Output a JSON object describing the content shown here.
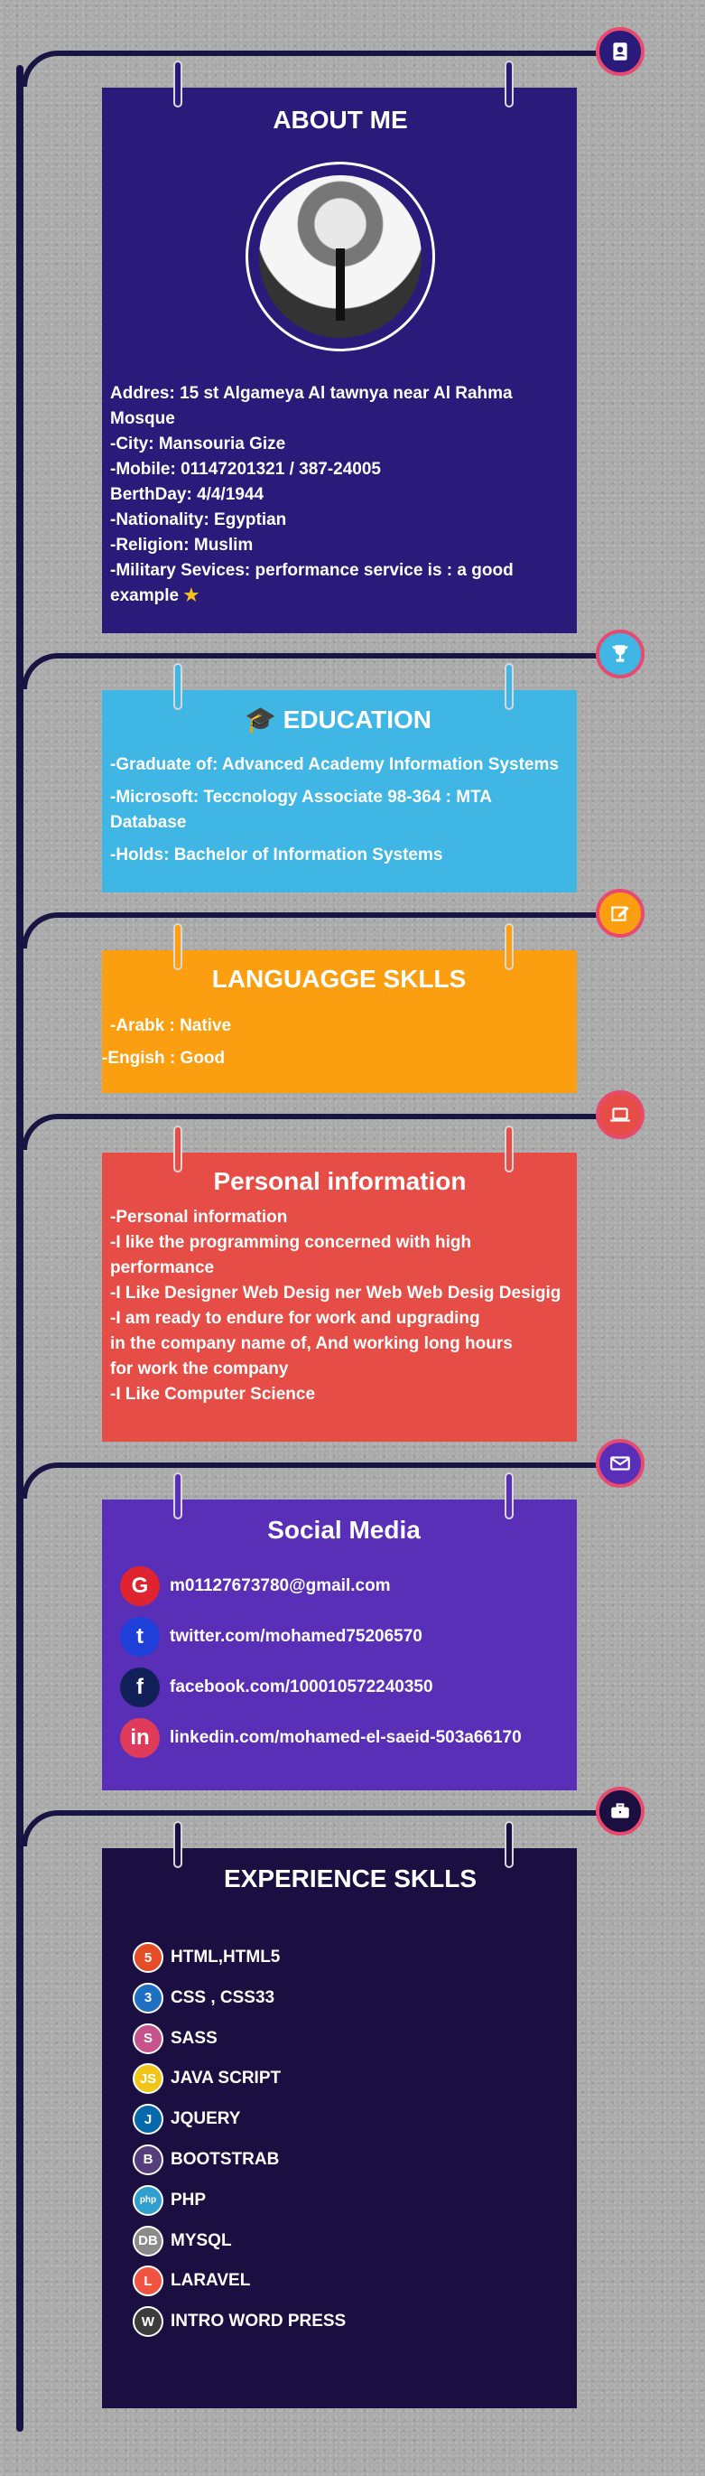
{
  "about": {
    "title": "ABOUT ME",
    "lines": [
      "Addres: 15 st Algameya Al tawnya near Al Rahma Mosque",
      "-City: Mansouria Gize",
      "-Mobile: 01147201321 / 387-24005",
      "BerthDay: 4/4/1944",
      "-Nationality: Egyptian",
      "-Religion: Muslim",
      "-Military Sevices: performance service is : a good example"
    ]
  },
  "education": {
    "title": "EDUCATION",
    "lines": [
      "-Graduate of: Advanced Academy Information Systems",
      "-Microsoft: Teccnology Associate 98-364 : MTA Database",
      "-Holds: Bachelor of Information Systems"
    ]
  },
  "languages": {
    "title": "LANGUAGGE SKLLS",
    "lines": [
      "-Arabk : Native",
      "-Engish : Good"
    ]
  },
  "personal": {
    "title": "Personal information",
    "lines": [
      "-Personal information",
      "-I like the programming concerned with high performance",
      "-I Like Designer Web Desig ner Web Web Desig Desigig",
      "-I am ready to endure for work and upgrading",
      "in the company name of, And working long hours",
      "for work the company",
      "-I Like Computer Science"
    ]
  },
  "social": {
    "title": "Social Media",
    "items": [
      {
        "icon": "google-icon",
        "glyph": "G",
        "color": "#e0242f",
        "text": "m01127673780@gmail.com"
      },
      {
        "icon": "twitter-icon",
        "glyph": "t",
        "color": "#1e40d8",
        "text": "twitter.com/mohamed75206570"
      },
      {
        "icon": "facebook-icon",
        "glyph": "f",
        "color": "#12205a",
        "text": "facebook.com/100010572240350"
      },
      {
        "icon": "linkedin-icon",
        "glyph": "in",
        "color": "#e03a5a",
        "text": "linkedin.com/mohamed-el-saeid-503a66170"
      }
    ]
  },
  "skills": {
    "title": "EXPERIENCE SKLLS",
    "items": [
      {
        "icon": "html5-icon",
        "glyph": "5",
        "color": "#e44d26",
        "text": "HTML,HTML5"
      },
      {
        "icon": "css3-icon",
        "glyph": "3",
        "color": "#1f6fc3",
        "text": "CSS , CSS33"
      },
      {
        "icon": "sass-icon",
        "glyph": "S",
        "color": "#c6538c",
        "text": "SASS"
      },
      {
        "icon": "javascript-icon",
        "glyph": "JS",
        "color": "#f0c419",
        "text": "JAVA SCRIPT"
      },
      {
        "icon": "jquery-icon",
        "glyph": "J",
        "color": "#0769ad",
        "text": "JQUERY"
      },
      {
        "icon": "bootstrap-icon",
        "glyph": "B",
        "color": "#563d7c",
        "text": "BOOTSTRAB"
      },
      {
        "icon": "php-icon",
        "glyph": "php",
        "color": "#2f9fd0",
        "text": "PHP"
      },
      {
        "icon": "mysql-icon",
        "glyph": "DB",
        "color": "#8a8a8a",
        "text": "MYSQL"
      },
      {
        "icon": "laravel-icon",
        "glyph": "L",
        "color": "#f05340",
        "text": "LARAVEL"
      },
      {
        "icon": "wordpress-icon",
        "glyph": "W",
        "color": "#3c3c3c",
        "text": "INTRO WORD PRESS"
      }
    ]
  },
  "sections": [
    {
      "icon": "contact-card-icon",
      "bg": "#2a1a7a"
    },
    {
      "icon": "trophy-icon",
      "bg": "#3fb6e4"
    },
    {
      "icon": "edit-icon",
      "bg": "#fb9e0f"
    },
    {
      "icon": "laptop-icon",
      "bg": "#e54d46"
    },
    {
      "icon": "envelope-icon",
      "bg": "#5a2fb8"
    },
    {
      "icon": "briefcase-icon",
      "bg": "#1a0f40"
    }
  ]
}
